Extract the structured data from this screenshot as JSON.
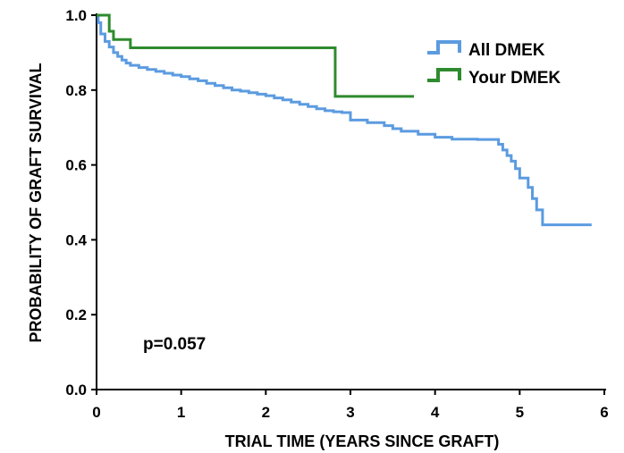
{
  "chart_data": {
    "type": "line",
    "step": true,
    "xlabel": "TRIAL TIME (YEARS SINCE GRAFT)",
    "ylabel": "PROBABILITY OF GRAFT SURVIVAL",
    "xlim": [
      0,
      6
    ],
    "ylim": [
      0,
      1
    ],
    "x_ticks": [
      "0",
      "1",
      "2",
      "3",
      "4",
      "5",
      "6"
    ],
    "y_ticks": [
      "0.0",
      "0.2",
      "0.4",
      "0.6",
      "0.8",
      "1.0"
    ],
    "grid": false,
    "legend_position": "top-right",
    "annotation": "p=0.057",
    "series": [
      {
        "name": "All DMEK",
        "color": "#5b9be0",
        "x": [
          0,
          0.02,
          0.05,
          0.1,
          0.15,
          0.2,
          0.25,
          0.3,
          0.35,
          0.4,
          0.5,
          0.6,
          0.7,
          0.8,
          0.9,
          1.0,
          1.1,
          1.2,
          1.3,
          1.4,
          1.5,
          1.6,
          1.7,
          1.8,
          1.9,
          2.0,
          2.1,
          2.2,
          2.3,
          2.4,
          2.5,
          2.6,
          2.7,
          2.8,
          2.9,
          3.0,
          3.2,
          3.4,
          3.5,
          3.6,
          3.8,
          4.0,
          4.2,
          4.5,
          4.75,
          4.8,
          4.85,
          4.9,
          4.95,
          5.0,
          5.05,
          5.1,
          5.15,
          5.2,
          5.27,
          5.85
        ],
        "y": [
          1.0,
          0.98,
          0.95,
          0.93,
          0.915,
          0.9,
          0.89,
          0.88,
          0.872,
          0.866,
          0.86,
          0.855,
          0.85,
          0.845,
          0.84,
          0.836,
          0.83,
          0.825,
          0.818,
          0.812,
          0.806,
          0.8,
          0.797,
          0.793,
          0.789,
          0.785,
          0.779,
          0.774,
          0.768,
          0.762,
          0.756,
          0.75,
          0.745,
          0.742,
          0.74,
          0.72,
          0.713,
          0.705,
          0.697,
          0.69,
          0.682,
          0.674,
          0.669,
          0.668,
          0.655,
          0.64,
          0.625,
          0.61,
          0.59,
          0.565,
          0.565,
          0.54,
          0.51,
          0.48,
          0.44,
          0.44
        ]
      },
      {
        "name": "Your DMEK",
        "color": "#2e8b2e",
        "x": [
          0,
          0.15,
          0.2,
          0.4,
          2.82,
          3.75
        ],
        "y": [
          1.0,
          0.957,
          0.935,
          0.913,
          0.783,
          0.783
        ]
      }
    ]
  }
}
